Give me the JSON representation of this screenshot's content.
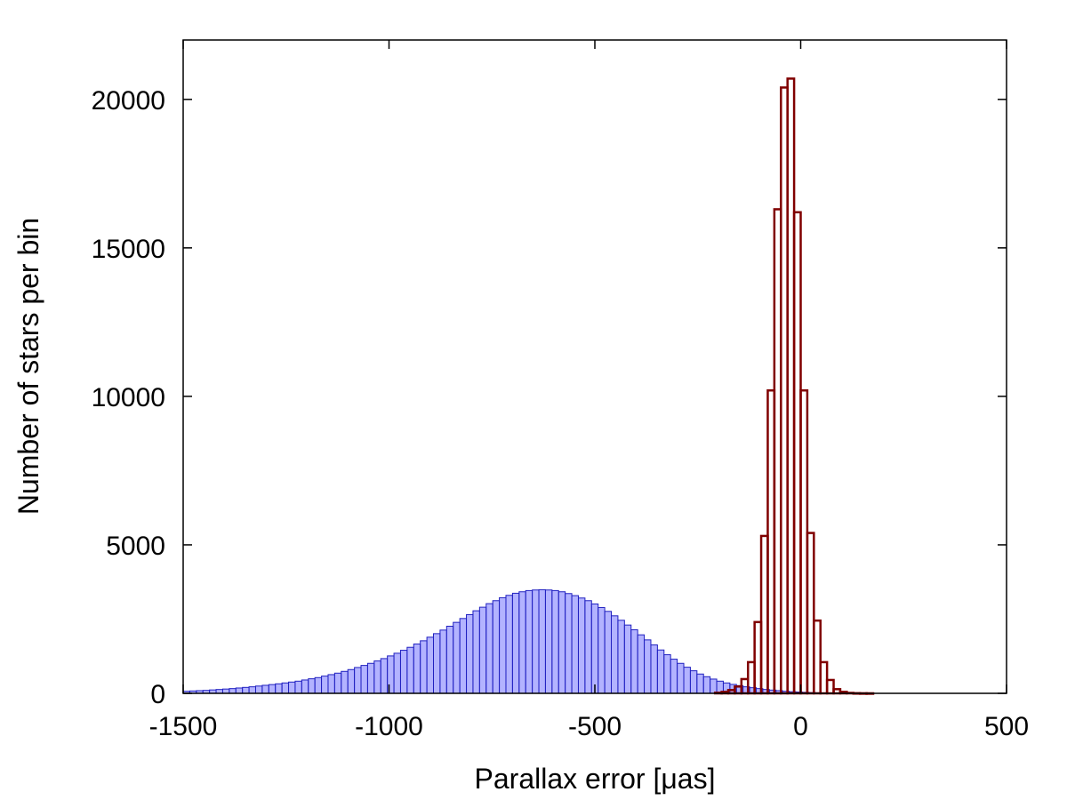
{
  "chart_data": {
    "type": "bar",
    "title": "",
    "xlabel": "Parallax error [μas]",
    "ylabel": "Number of stars per bin",
    "xlim": [
      -1500,
      500
    ],
    "ylim": [
      0,
      22000
    ],
    "xticks": [
      -1500,
      -1000,
      -500,
      0,
      500
    ],
    "yticks": [
      0,
      5000,
      10000,
      15000,
      20000
    ],
    "grid": false,
    "legend": "none",
    "series": [
      {
        "color": "#8080ff",
        "stroke": "#2020c0",
        "bin_width": 16,
        "x": [
          -1492,
          -1476,
          -1460,
          -1444,
          -1428,
          -1412,
          -1396,
          -1380,
          -1364,
          -1348,
          -1332,
          -1316,
          -1300,
          -1284,
          -1268,
          -1252,
          -1236,
          -1220,
          -1204,
          -1188,
          -1172,
          -1156,
          -1140,
          -1124,
          -1108,
          -1092,
          -1076,
          -1060,
          -1044,
          -1028,
          -1012,
          -996,
          -980,
          -964,
          -948,
          -932,
          -916,
          -900,
          -884,
          -868,
          -852,
          -836,
          -820,
          -804,
          -788,
          -772,
          -756,
          -740,
          -724,
          -708,
          -692,
          -676,
          -660,
          -644,
          -628,
          -612,
          -596,
          -580,
          -564,
          -548,
          -532,
          -516,
          -500,
          -484,
          -468,
          -452,
          -436,
          -420,
          -404,
          -388,
          -372,
          -356,
          -340,
          -324,
          -308,
          -292,
          -276,
          -260,
          -244,
          -228,
          -212,
          -196,
          -180,
          -164,
          -148,
          -132,
          -116,
          -100,
          -84,
          -68,
          -52,
          -36,
          -20,
          -4,
          12,
          28,
          44,
          60,
          76,
          92,
          108,
          124,
          140,
          156,
          172,
          188,
          204,
          220,
          236,
          252,
          268,
          284,
          300,
          316,
          332,
          348,
          364,
          380,
          396,
          412,
          428,
          444,
          460,
          476,
          492
        ],
        "values": [
          70,
          80,
          90,
          100,
          115,
          130,
          145,
          160,
          180,
          200,
          220,
          245,
          270,
          295,
          320,
          350,
          380,
          410,
          450,
          490,
          530,
          580,
          630,
          680,
          740,
          800,
          870,
          940,
          1010,
          1090,
          1170,
          1260,
          1350,
          1450,
          1550,
          1660,
          1770,
          1890,
          2010,
          2130,
          2260,
          2390,
          2520,
          2650,
          2780,
          2900,
          3020,
          3120,
          3220,
          3300,
          3370,
          3420,
          3460,
          3480,
          3490,
          3480,
          3460,
          3420,
          3360,
          3290,
          3210,
          3120,
          3010,
          2890,
          2760,
          2610,
          2460,
          2300,
          2140,
          1970,
          1800,
          1630,
          1460,
          1300,
          1150,
          1010,
          880,
          760,
          650,
          560,
          480,
          410,
          350,
          300,
          260,
          220,
          190,
          160,
          130,
          110,
          90,
          70,
          55,
          45,
          35,
          25,
          18,
          12,
          8,
          5,
          3,
          2,
          1,
          1,
          0,
          0,
          0,
          0,
          0,
          0,
          0,
          0,
          0,
          0,
          0,
          0,
          0,
          0,
          0,
          0,
          0,
          0,
          0,
          0,
          0
        ]
      },
      {
        "color": "none",
        "stroke": "#800000",
        "bin_width": 16,
        "x": [
          -200,
          -184,
          -168,
          -152,
          -136,
          -120,
          -104,
          -88,
          -72,
          -56,
          -40,
          -24,
          -8,
          8,
          24,
          40,
          56,
          72,
          88,
          104,
          120,
          136,
          152,
          168,
          184,
          200
        ],
        "values": [
          20,
          50,
          110,
          230,
          480,
          1050,
          2400,
          5300,
          10200,
          16300,
          20400,
          20700,
          16200,
          10200,
          5400,
          2450,
          1050,
          450,
          140,
          50,
          15,
          5,
          2,
          1,
          0,
          0
        ]
      }
    ]
  }
}
